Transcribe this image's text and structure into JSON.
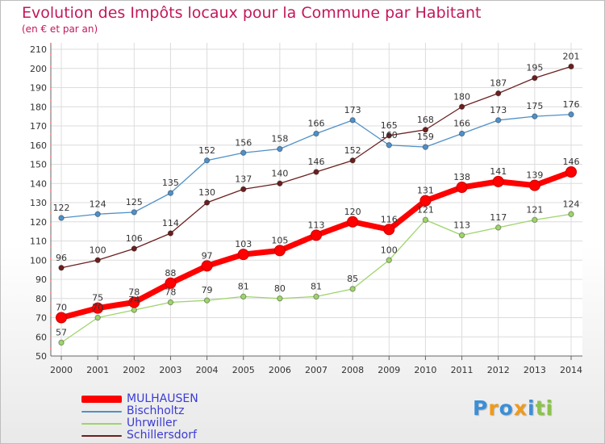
{
  "header": {
    "title": "Evolution des Impôts locaux pour la Commune par Habitant",
    "subtitle": "(en € et par an)"
  },
  "logo": {
    "text": "Proxiti",
    "colors": [
      "#3a8fd8",
      "#f09a1a",
      "#3a8fd8",
      "#f09a1a",
      "#3a8fd8",
      "#8bc34a",
      "#8bc34a"
    ]
  },
  "chart_data": {
    "type": "line",
    "title": "Evolution des Impôts locaux pour la Commune par Habitant",
    "subtitle": "(en € et par an)",
    "x": [
      2000,
      2001,
      2002,
      2003,
      2004,
      2005,
      2006,
      2007,
      2008,
      2009,
      2010,
      2011,
      2012,
      2013,
      2014
    ],
    "ylim": [
      50,
      210
    ],
    "yticks": [
      50,
      60,
      70,
      80,
      90,
      100,
      110,
      120,
      130,
      140,
      150,
      160,
      170,
      180,
      190,
      200,
      210
    ],
    "grid": true,
    "legend_position": "bottom-left",
    "series": [
      {
        "name": "MULHAUSEN",
        "color": "#ff0000",
        "values": [
          70,
          75,
          78,
          88,
          97,
          103,
          105,
          113,
          120,
          116,
          131,
          138,
          141,
          139,
          146
        ]
      },
      {
        "name": "Bischholtz",
        "color": "#4f90c8",
        "values": [
          122,
          124,
          125,
          135,
          152,
          156,
          158,
          166,
          173,
          160,
          159,
          166,
          173,
          175,
          176
        ]
      },
      {
        "name": "Uhrwiller",
        "color": "#9ed46a",
        "values": [
          57,
          70,
          74,
          78,
          79,
          81,
          80,
          81,
          85,
          100,
          121,
          113,
          117,
          121,
          124
        ]
      },
      {
        "name": "Schillersdorf",
        "color": "#6b1f1f",
        "values": [
          96,
          100,
          106,
          114,
          130,
          137,
          140,
          146,
          152,
          165,
          168,
          180,
          187,
          195,
          201
        ]
      }
    ]
  }
}
